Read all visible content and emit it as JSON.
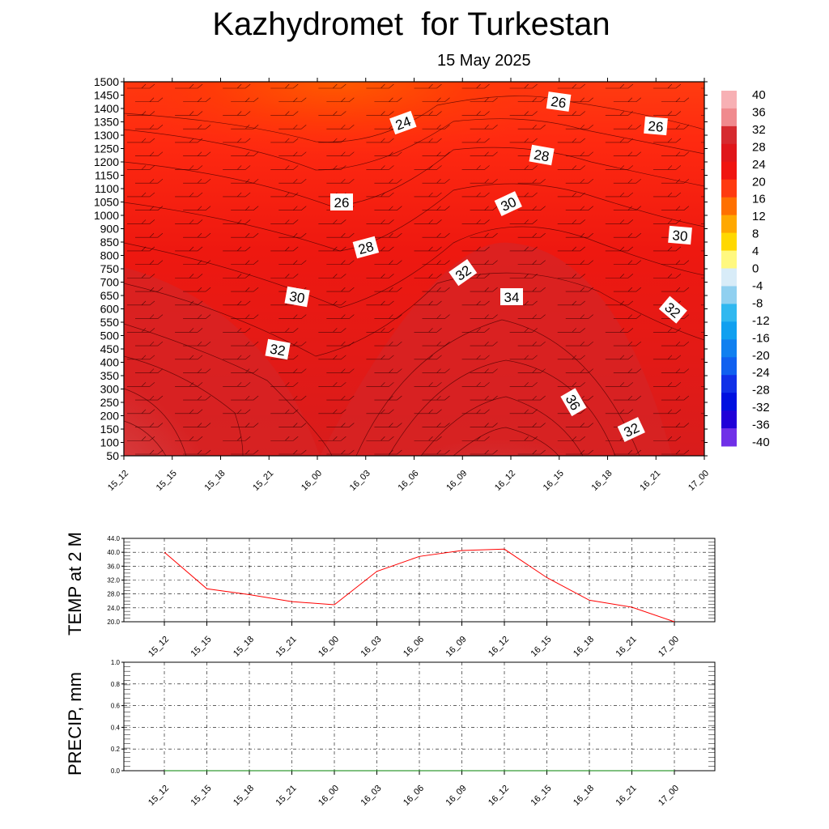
{
  "title": "Kazhydromet  for Turkestan",
  "subtitle": "15 May 2025",
  "colorbar": {
    "labels": [
      "40",
      "36",
      "32",
      "28",
      "24",
      "20",
      "16",
      "12",
      "8",
      "4",
      "0",
      "-4",
      "-8",
      "-12",
      "-16",
      "-20",
      "-24",
      "-28",
      "-32",
      "-36",
      "-40"
    ],
    "colors_top_to_bottom": [
      "#f7b0b4",
      "#f08a8e",
      "#d62a2f",
      "#e0161a",
      "#f01410",
      "#ff3a10",
      "#ff7000",
      "#ffa800",
      "#ffd800",
      "#fff880",
      "#d8ecf8",
      "#90d0f0",
      "#30b8f0",
      "#10a0f0",
      "#1080f0",
      "#1060f0",
      "#1030e8",
      "#0010e0",
      "#2000d8",
      "#7030e8"
    ]
  },
  "chart_data": [
    {
      "type": "heatmap",
      "title": "Kazhydromet  for Turkestan",
      "subtitle": "15 May 2025",
      "x": [
        "15_12",
        "15_15",
        "15_18",
        "15_21",
        "16_00",
        "16_03",
        "16_06",
        "16_09",
        "16_12",
        "16_15",
        "16_18",
        "16_21",
        "17_00"
      ],
      "y": [
        50,
        100,
        150,
        200,
        250,
        300,
        350,
        400,
        450,
        500,
        550,
        600,
        650,
        700,
        750,
        800,
        850,
        900,
        1000,
        1050,
        1100,
        1150,
        1200,
        1250,
        1300,
        1350,
        1400,
        1450,
        1500
      ],
      "y_tick_labels": [
        "1500",
        "1450",
        "1400",
        "1350",
        "1300",
        "1250",
        "1200",
        "1150",
        "1100",
        "1050",
        "1000",
        "900",
        "850",
        "800",
        "750",
        "700",
        "650",
        "600",
        "550",
        "500",
        "450",
        "400",
        "350",
        "300",
        "250",
        "200",
        "150",
        "100",
        "50"
      ],
      "contour_labels": [
        "24",
        "26",
        "26",
        "26",
        "28",
        "28",
        "30",
        "30",
        "30",
        "32",
        "32",
        "32",
        "32",
        "34",
        "36"
      ],
      "colorbar_range": [
        -40,
        40
      ]
    },
    {
      "type": "line",
      "ylabel": "TEMP at 2 M",
      "x": [
        "15_12",
        "15_15",
        "15_18",
        "15_21",
        "16_00",
        "16_03",
        "16_06",
        "16_09",
        "16_12",
        "16_15",
        "16_18",
        "16_21",
        "17_00"
      ],
      "y_tick_labels": [
        "44.0",
        "40.0",
        "36.0",
        "32.0",
        "28.0",
        "24.0",
        "20.0"
      ],
      "ylim": [
        20,
        44
      ],
      "series": [
        {
          "color": "#ff0000",
          "values": [
            40.0,
            29.5,
            27.8,
            25.8,
            24.9,
            34.5,
            38.8,
            40.5,
            40.9,
            32.7,
            26.2,
            24.2,
            20.0
          ]
        }
      ],
      "grid": true
    },
    {
      "type": "line",
      "ylabel": "PRECIP, mm",
      "x": [
        "15_12",
        "15_15",
        "15_18",
        "15_21",
        "16_00",
        "16_03",
        "16_06",
        "16_09",
        "16_12",
        "16_15",
        "16_18",
        "16_21",
        "17_00"
      ],
      "y_tick_labels": [
        "1.0",
        "0.8",
        "0.6",
        "0.4",
        "0.2",
        "0.0"
      ],
      "ylim": [
        0,
        1
      ],
      "series": [
        {
          "color": "#008000",
          "values": [
            0,
            0,
            0,
            0,
            0,
            0,
            0,
            0,
            0,
            0,
            0,
            0,
            0
          ]
        }
      ],
      "grid": true
    }
  ]
}
